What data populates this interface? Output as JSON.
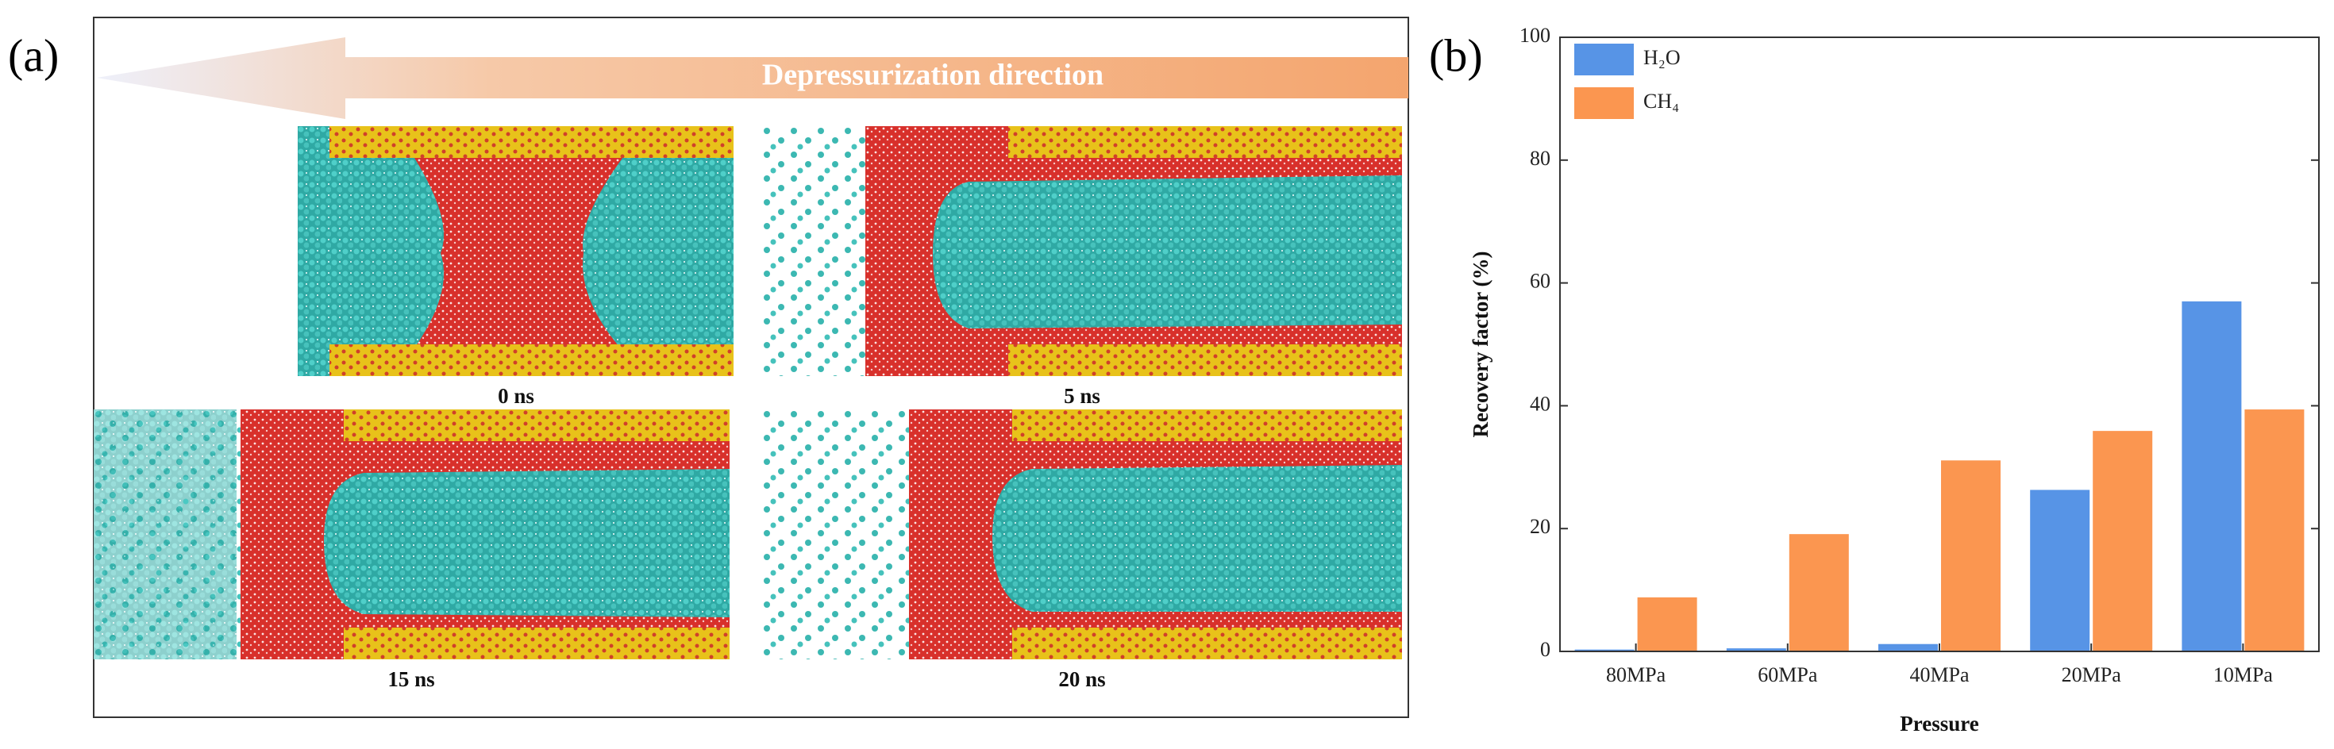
{
  "panel_a": {
    "label": "(a)",
    "arrow_text": "Depressurization direction",
    "snapshots": [
      "0 ns",
      "5 ns",
      "15 ns",
      "20 ns"
    ]
  },
  "chart_data": {
    "type": "bar",
    "label": "(b)",
    "x_label": "Pressure",
    "y_label": "Recovery factor (%)",
    "categories": [
      "80MPa",
      "60MPa",
      "40MPa",
      "20MPa",
      "10MPa"
    ],
    "series": [
      {
        "name": "H₂O",
        "color": "#5794e6",
        "values": [
          0.3,
          0.5,
          1.2,
          26.3,
          57.0
        ]
      },
      {
        "name": "CH₄",
        "color": "#fb9650",
        "values": [
          8.8,
          19.1,
          31.1,
          35.9,
          39.4
        ]
      }
    ],
    "ylim": [
      0,
      100
    ],
    "yticks": [
      0,
      20,
      40,
      60,
      80,
      100
    ],
    "legend": "upper left",
    "grid": false
  }
}
